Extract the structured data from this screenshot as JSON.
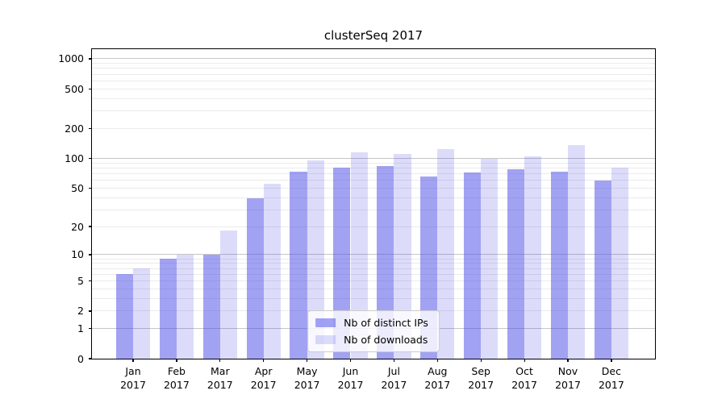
{
  "chart_data": {
    "type": "bar",
    "title": "clusterSeq 2017",
    "categories": [
      "Jan",
      "Feb",
      "Mar",
      "Apr",
      "May",
      "Jun",
      "Jul",
      "Aug",
      "Sep",
      "Oct",
      "Nov",
      "Dec"
    ],
    "category_year": "2017",
    "series": [
      {
        "name": "Nb of distinct IPs",
        "color": "rgba(69,69,231,0.50)",
        "values": [
          6,
          9,
          10,
          39,
          74,
          80,
          83,
          66,
          72,
          77,
          73,
          60
        ]
      },
      {
        "name": "Nb of downloads",
        "color": "rgba(69,69,231,0.19)",
        "values": [
          7,
          10,
          18,
          55,
          95,
          115,
          110,
          125,
          100,
          105,
          135,
          80
        ]
      }
    ],
    "yscale": "log1p",
    "ylim": [
      0,
      1250
    ],
    "yticks": [
      0,
      1,
      2,
      5,
      10,
      20,
      50,
      100,
      200,
      500,
      1000
    ],
    "ytick_labels": [
      "0",
      "1",
      "2",
      "5",
      "10",
      "20",
      "50",
      "100",
      "200",
      "500",
      "1000"
    ],
    "major_grid_values": [
      1,
      10,
      100,
      1000
    ],
    "minor_grid_values": [
      2,
      3,
      4,
      5,
      6,
      7,
      8,
      9,
      20,
      30,
      40,
      50,
      60,
      70,
      80,
      90,
      200,
      300,
      400,
      500,
      600,
      700,
      800,
      900
    ],
    "grid": "horizontal major+minor",
    "xlabel": "",
    "ylabel": "",
    "legend_position": "lower center",
    "colors": {
      "bar_dark_on_white": "#a2a2f3",
      "bar_light_on_white": "#dcdcfa",
      "major_grid": "#c6c6c6",
      "minor_grid": "#ebebeb",
      "axis": "#000000",
      "text": "#000000",
      "legend_border": "#cccccc",
      "legend_bg": "rgba(255,255,255,0.8)"
    }
  }
}
